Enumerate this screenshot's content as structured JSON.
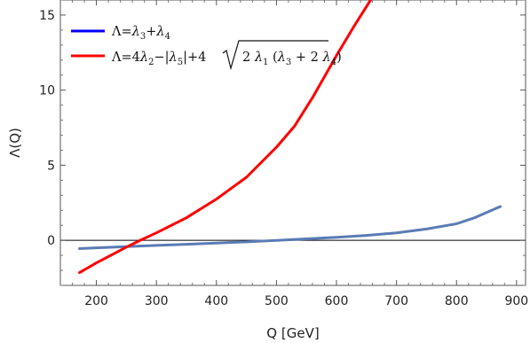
{
  "chart_data": {
    "type": "line",
    "title": "",
    "xlabel": "Q [GeV]",
    "ylabel": "Λ(Q)",
    "xlim": [
      140,
      915
    ],
    "ylim": [
      -3,
      16
    ],
    "x_ticks": [
      200,
      300,
      400,
      500,
      600,
      700,
      800,
      900
    ],
    "y_ticks": [
      0,
      5,
      10,
      15
    ],
    "x_tick_labels": [
      "200",
      "300",
      "400",
      "500",
      "600",
      "700",
      "800",
      "900"
    ],
    "y_tick_labels": [
      "0",
      "5",
      "10",
      "15"
    ],
    "zero_line": true,
    "grid": false,
    "legend_position": "top-left",
    "legend": {
      "entry1": {
        "color": "#0000ff",
        "lambda": "Λ",
        "eq": "=",
        "sym": "λ",
        "sub3": "3",
        "plus": "+",
        "sub4": "4"
      },
      "entry2": {
        "color": "#ff0000",
        "lambda": "Λ",
        "eq": "=4",
        "sym": "λ",
        "sub2": "2",
        "minus": "−|",
        "sub5": "5",
        "bar_plus_four": "|+4",
        "radicand_two": "2 ",
        "sub1": "1",
        "open_paren": " (",
        "sub3": "3",
        "plus_two": " + 2 ",
        "sub4": "4",
        "close_paren": ")"
      }
    },
    "series": [
      {
        "id": "lambda34",
        "color": "#5a7bb5",
        "x": [
          172,
          200,
          250,
          300,
          350,
          400,
          450,
          500,
          550,
          600,
          650,
          700,
          750,
          800,
          830,
          850,
          873
        ],
        "y": [
          -0.55,
          -0.5,
          -0.42,
          -0.34,
          -0.26,
          -0.18,
          -0.1,
          0.0,
          0.1,
          0.2,
          0.33,
          0.5,
          0.75,
          1.1,
          1.5,
          1.85,
          2.25
        ]
      },
      {
        "id": "lambda_combo",
        "color": "#ff0000",
        "x": [
          172,
          200,
          250,
          272,
          300,
          350,
          400,
          450,
          500,
          530,
          560,
          600,
          630,
          660,
          663
        ],
        "y": [
          -2.15,
          -1.5,
          -0.45,
          -0.02,
          0.5,
          1.5,
          2.75,
          4.2,
          6.2,
          7.6,
          9.5,
          12.3,
          14.3,
          16.2,
          16.5
        ]
      }
    ]
  }
}
